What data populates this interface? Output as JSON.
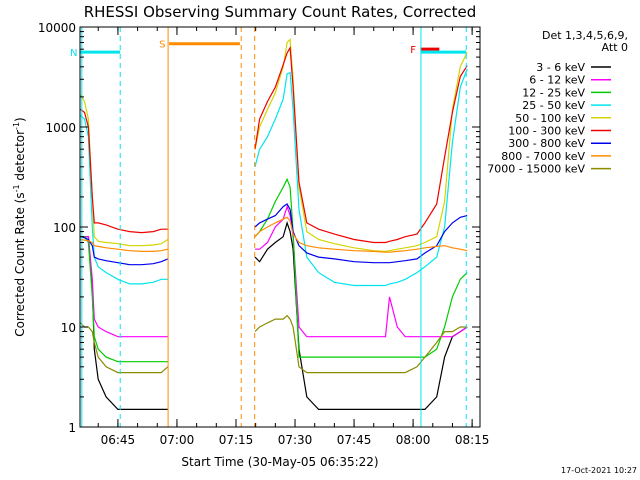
{
  "chart_data": {
    "type": "line",
    "title": "RHESSI Observing Summary Count Rates, Corrected",
    "xlabel": "Start Time (30-May-05 06:35:22)",
    "ylabel": "Corrected Count Rate (s⁻¹ detector⁻¹)",
    "ylabel_parts": [
      "Corrected Count Rate (s",
      "-1",
      " detector",
      "-1",
      ")"
    ],
    "y_scale": "log",
    "ylim": [
      1,
      10000
    ],
    "xlim": [
      "06:35:22",
      "08:17:00"
    ],
    "y_ticks": [
      1,
      10,
      100,
      1000,
      10000
    ],
    "y_tick_labels": [
      "1",
      "10",
      "100",
      "1000",
      "10000"
    ],
    "x_ticks": [
      "06:45",
      "07:00",
      "07:15",
      "07:30",
      "07:45",
      "08:00",
      "08:15"
    ],
    "legend_header": [
      "Det 1,3,4,5,6,9,",
      "Att 0"
    ],
    "legend_position": "right",
    "footer_date": "17-Oct-2021 10:27",
    "flag_bars": [
      {
        "label": "N",
        "start": "06:35:22",
        "end": "06:45:35",
        "value": 5600,
        "color": "#00e5ee"
      },
      {
        "label": "S",
        "start": "06:58:00",
        "end": "07:16:00",
        "value": 6800,
        "color": "#ff8c00"
      },
      {
        "label": "F",
        "start": "08:01:50",
        "end": "08:06:40",
        "value": 6000,
        "color": "#ee0000"
      },
      {
        "label": "",
        "start": "08:02:00",
        "end": "08:13:30",
        "value": 5600,
        "color": "#00e5ee"
      }
    ],
    "vertical_lines": [
      {
        "time": "06:35:50",
        "color": "#00e5ee",
        "style": "solid"
      },
      {
        "time": "06:45:35",
        "color": "#00e5ee",
        "style": "dashed"
      },
      {
        "time": "06:57:45",
        "color": "#ff8c00",
        "style": "solid"
      },
      {
        "time": "07:16:20",
        "color": "#ff8c00",
        "style": "dashed"
      },
      {
        "time": "07:19:45",
        "color": "#ff8c00",
        "style": "dashed"
      },
      {
        "time": "08:02:00",
        "color": "#00e5ee",
        "style": "solid"
      },
      {
        "time": "08:13:30",
        "color": "#00e5ee",
        "style": "dashed"
      }
    ],
    "gap": [
      "06:57:45",
      "07:19:45"
    ],
    "x_times": [
      "06:35:30",
      "06:36:30",
      "06:37:30",
      "06:38:30",
      "06:39:00",
      "06:40:00",
      "06:42:00",
      "06:45:00",
      "06:48:00",
      "06:51:00",
      "06:54:00",
      "06:56:00",
      "06:57:40",
      "07:19:50",
      "07:21:00",
      "07:23:00",
      "07:25:00",
      "07:27:00",
      "07:28:00",
      "07:28:45",
      "07:29:30",
      "07:31:00",
      "07:33:00",
      "07:36:00",
      "07:40:00",
      "07:45:00",
      "07:50:00",
      "07:53:00",
      "07:54:00",
      "07:56:00",
      "07:58:00",
      "08:01:00",
      "08:03:00",
      "08:06:00",
      "08:08:00",
      "08:10:00",
      "08:12:00",
      "08:13:45"
    ],
    "series": [
      {
        "name": "3 - 6 keV",
        "color": "#000000",
        "values": [
          80,
          80,
          80,
          25,
          6,
          3,
          2,
          1.5,
          1.5,
          1.5,
          1.5,
          1.5,
          1.5,
          50,
          45,
          60,
          70,
          80,
          110,
          90,
          60,
          6,
          2,
          1.5,
          1.5,
          1.5,
          1.5,
          1.5,
          1.5,
          1.5,
          1.5,
          1.5,
          1.5,
          2,
          5,
          8,
          9,
          10
        ]
      },
      {
        "name": "6 - 12 keV",
        "color": "#ff00ff",
        "values": [
          80,
          80,
          80,
          30,
          12,
          10,
          9,
          8,
          8,
          8,
          8,
          8,
          8,
          60,
          60,
          70,
          100,
          120,
          160,
          130,
          80,
          10,
          8,
          8,
          8,
          8,
          8,
          8,
          20,
          10,
          8,
          8,
          8,
          8,
          8,
          8,
          9,
          10
        ]
      },
      {
        "name": "12 - 25 keV",
        "color": "#00cc00",
        "values": [
          80,
          80,
          70,
          20,
          8,
          6,
          5,
          4.5,
          4.5,
          4.5,
          4.5,
          4.5,
          4.5,
          80,
          90,
          120,
          180,
          250,
          300,
          250,
          90,
          5,
          5,
          5,
          5,
          5,
          5,
          5,
          5,
          5,
          5,
          5,
          5,
          6,
          10,
          20,
          30,
          35
        ]
      },
      {
        "name": "25 - 50 keV",
        "color": "#00e5ee",
        "values": [
          1300,
          1200,
          800,
          100,
          50,
          40,
          35,
          30,
          27,
          27,
          28,
          30,
          30,
          400,
          600,
          800,
          1200,
          1900,
          3400,
          3500,
          1500,
          150,
          50,
          35,
          28,
          26,
          26,
          26,
          27,
          28,
          30,
          35,
          40,
          50,
          100,
          700,
          2500,
          3800
        ]
      },
      {
        "name": "50 - 100 keV",
        "color": "#d4d400",
        "values": [
          2100,
          1800,
          1200,
          200,
          80,
          72,
          70,
          68,
          65,
          65,
          66,
          68,
          75,
          600,
          1000,
          1500,
          2200,
          4000,
          7000,
          7500,
          3000,
          250,
          90,
          75,
          68,
          62,
          58,
          57,
          58,
          60,
          62,
          65,
          70,
          80,
          180,
          1500,
          4000,
          5600
        ]
      },
      {
        "name": "100 - 300 keV",
        "color": "#ee0000",
        "values": [
          1500,
          1400,
          1000,
          200,
          110,
          110,
          105,
          95,
          90,
          88,
          90,
          95,
          95,
          600,
          1200,
          1800,
          2500,
          4200,
          5500,
          6200,
          2500,
          280,
          110,
          95,
          85,
          75,
          70,
          70,
          72,
          75,
          80,
          85,
          110,
          170,
          500,
          1400,
          3200,
          4100
        ]
      },
      {
        "name": "300 - 800 keV",
        "color": "#0000ee",
        "values": [
          80,
          78,
          75,
          65,
          50,
          48,
          46,
          44,
          42,
          42,
          43,
          45,
          48,
          100,
          110,
          120,
          130,
          160,
          170,
          150,
          90,
          65,
          55,
          50,
          48,
          45,
          44,
          44,
          44,
          45,
          46,
          48,
          55,
          65,
          90,
          110,
          125,
          130
        ]
      },
      {
        "name": "800 - 7000 keV",
        "color": "#ff8c00",
        "values": [
          75,
          74,
          73,
          70,
          65,
          64,
          62,
          60,
          58,
          57,
          57,
          58,
          60,
          80,
          90,
          100,
          110,
          120,
          125,
          115,
          85,
          70,
          65,
          62,
          60,
          58,
          57,
          56,
          56,
          57,
          58,
          60,
          62,
          64,
          65,
          62,
          60,
          58
        ]
      },
      {
        "name": "7000 - 15000 keV",
        "color": "#8b8b00",
        "values": [
          11,
          10,
          10,
          9,
          7,
          5,
          4,
          3.5,
          3.5,
          3.5,
          3.5,
          3.5,
          4,
          9,
          10,
          11,
          12,
          12,
          13,
          12,
          10,
          4,
          3.5,
          3.5,
          3.5,
          3.5,
          3.5,
          3.5,
          3.5,
          3.5,
          3.5,
          4,
          5,
          7,
          9,
          9,
          10,
          10
        ]
      }
    ]
  }
}
